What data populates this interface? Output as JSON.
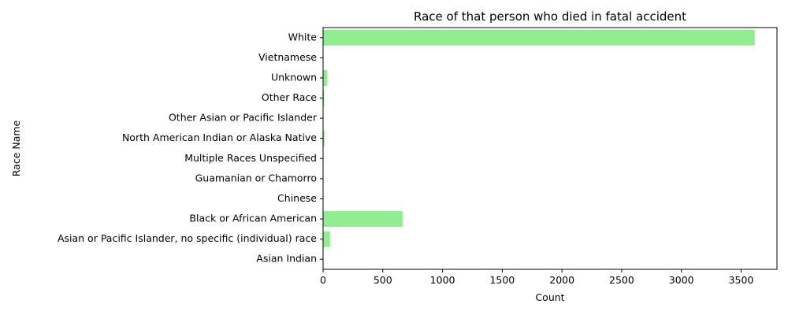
{
  "chart_data": {
    "type": "bar",
    "orientation": "horizontal",
    "title": "Race of that person who died in fatal accident",
    "xlabel": "Count",
    "ylabel": "Race Name",
    "xlim": [
      0,
      3800
    ],
    "xticks": [
      "0",
      "500",
      "1000",
      "1500",
      "2000",
      "2500",
      "3000",
      "3500"
    ],
    "categories": [
      "Asian Indian",
      "Asian or Pacific Islander, no specific (individual) race",
      "Black or African American",
      "Chinese",
      "Guamanian or Chamorro",
      "Multiple Races Unspecified",
      "North American Indian or Alaska Native",
      "Other Asian or Pacific Islander",
      "Other Race",
      "Unknown",
      "Vietnamese",
      "White"
    ],
    "values": [
      2,
      58,
      665,
      1,
      1,
      3,
      11,
      2,
      8,
      33,
      1,
      3614
    ],
    "bar_color": "#90ee90",
    "grid": false,
    "legend": "none"
  }
}
